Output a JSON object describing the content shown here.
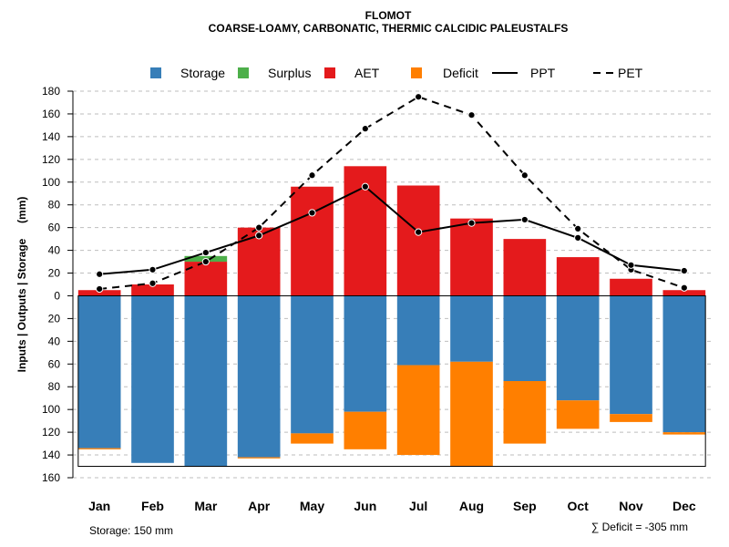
{
  "chart_data": {
    "type": "bar",
    "title": "FLOMOT",
    "subtitle": "COARSE-LOAMY, CARBONATIC, THERMIC CALCIDIC PALEUSTALFS",
    "ylabel": "Inputs | Outputs | Storage     (mm)",
    "categories": [
      "Jan",
      "Feb",
      "Mar",
      "Apr",
      "May",
      "Jun",
      "Jul",
      "Aug",
      "Sep",
      "Oct",
      "Nov",
      "Dec"
    ],
    "ylim": [
      -160,
      180
    ],
    "yticks": [
      180,
      160,
      140,
      120,
      100,
      80,
      60,
      40,
      20,
      0,
      -20,
      -40,
      -60,
      -80,
      -100,
      -120,
      -140,
      -160
    ],
    "ytick_labels": [
      "180",
      "160",
      "140",
      "120",
      "100",
      "80",
      "60",
      "40",
      "20",
      "0",
      "20",
      "40",
      "60",
      "80",
      "100",
      "120",
      "140",
      "160"
    ],
    "legend_placement": "top",
    "legend": [
      {
        "label": "Storage",
        "kind": "square",
        "color": "#377EB8"
      },
      {
        "label": "Surplus",
        "kind": "square",
        "color": "#4DAF4A"
      },
      {
        "label": "AET",
        "kind": "square",
        "color": "#E41A1C"
      },
      {
        "label": "Deficit",
        "kind": "square",
        "color": "#FF7F00"
      },
      {
        "label": "PPT",
        "kind": "solid-line",
        "color": "#000000"
      },
      {
        "label": "PET",
        "kind": "dashed-line",
        "color": "#000000"
      }
    ],
    "colors": {
      "storage": "#377EB8",
      "surplus": "#4DAF4A",
      "aet": "#E41A1C",
      "deficit": "#FF7F00",
      "grid": "#BEBEBE"
    },
    "series": [
      {
        "name": "AET",
        "values": [
          5,
          10,
          30,
          60,
          96,
          114,
          97,
          68,
          50,
          34,
          15,
          5
        ]
      },
      {
        "name": "Surplus",
        "values": [
          0,
          0,
          5,
          0,
          0,
          0,
          0,
          0,
          0,
          0,
          0,
          0
        ]
      },
      {
        "name": "Storage",
        "values": [
          134,
          147,
          150,
          142,
          121,
          102,
          61,
          58,
          75,
          92,
          104,
          120
        ]
      },
      {
        "name": "Deficit",
        "values": [
          1,
          0,
          0,
          1,
          9,
          33,
          79,
          92,
          55,
          25,
          7,
          2
        ]
      },
      {
        "name": "PPT",
        "values": [
          19,
          23,
          38,
          53,
          73,
          96,
          56,
          64,
          67,
          51,
          27,
          22
        ]
      },
      {
        "name": "PET",
        "values": [
          6,
          11,
          30,
          60,
          106,
          147,
          175,
          159,
          106,
          59,
          23,
          7
        ]
      }
    ],
    "storage_capacity": 150,
    "annotations": {
      "storage_note": "Storage: 150 mm",
      "deficit_note": "∑ Deficit = -305 mm"
    }
  }
}
